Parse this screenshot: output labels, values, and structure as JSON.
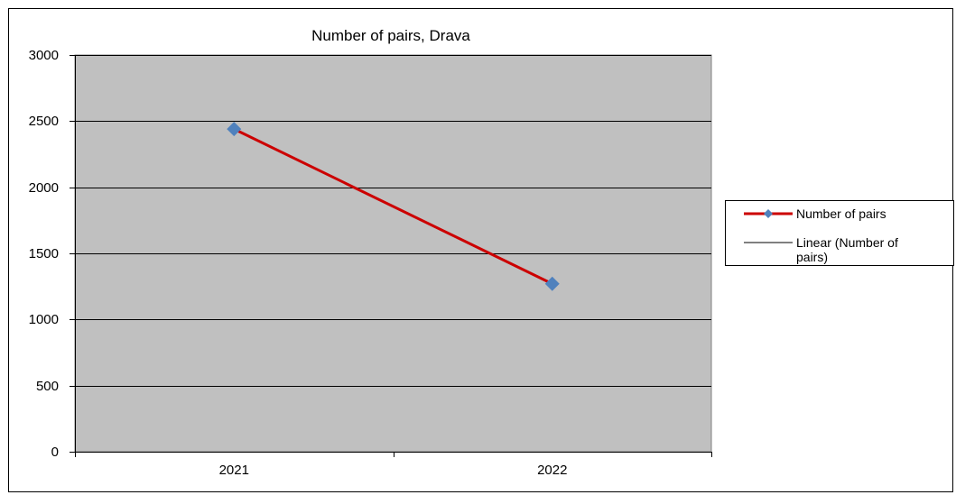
{
  "chart_data": {
    "type": "line",
    "title": "Number  of pairs, Drava",
    "categories": [
      "2021",
      "2022"
    ],
    "series": [
      {
        "name": "Number of pairs",
        "values": [
          2440,
          1270
        ],
        "color": "#cc0000",
        "marker_color": "#4f81bd"
      }
    ],
    "trendline": {
      "name": "Linear (Number of pairs)",
      "name_lines": [
        "Linear (Number of",
        "pairs)"
      ],
      "color": "#000000"
    },
    "ylim": [
      0,
      3000
    ],
    "yticks": [
      0,
      500,
      1000,
      1500,
      2000,
      2500,
      3000
    ],
    "grid": true,
    "plot_background": "#c0c0c0",
    "legend_position": "right"
  }
}
